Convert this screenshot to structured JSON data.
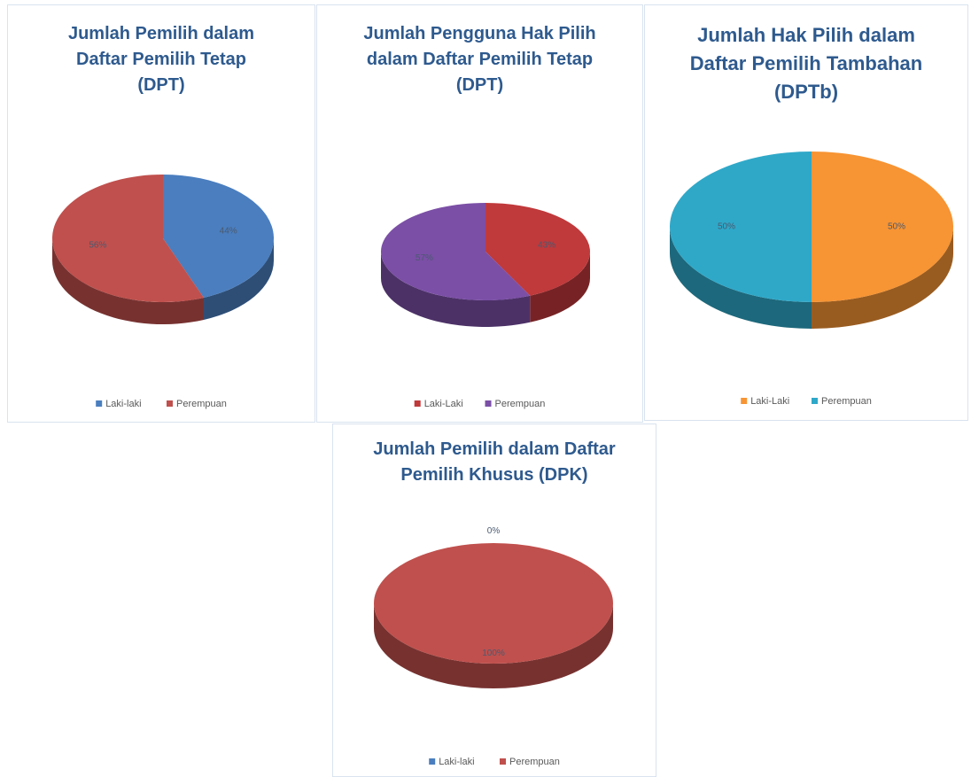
{
  "chart_data": [
    {
      "type": "pie",
      "title": "Jumlah Pemilih dalam Daftar Pemilih Tetap (DPT)",
      "categories": [
        "Laki-laki",
        "Perempuan"
      ],
      "values": [
        44,
        56
      ],
      "value_labels": [
        "44%",
        "56%"
      ],
      "colors": [
        "#4a7ebf",
        "#c0504d"
      ],
      "legend": "bottom"
    },
    {
      "type": "pie",
      "title": "Jumlah Pengguna Hak Pilih dalam Daftar Pemilih Tetap (DPT)",
      "categories": [
        "Laki-Laki",
        "Perempuan"
      ],
      "values": [
        43,
        57
      ],
      "value_labels": [
        "43%",
        "57%"
      ],
      "colors": [
        "#c0393b",
        "#7b4fa6"
      ],
      "legend": "bottom"
    },
    {
      "type": "pie",
      "title": "Jumlah Hak Pilih dalam Daftar Pemilih Tambahan (DPTb)",
      "categories": [
        "Laki-Laki",
        "Perempuan"
      ],
      "values": [
        50,
        50
      ],
      "value_labels": [
        "50%",
        "50%"
      ],
      "colors": [
        "#f79433",
        "#2fa8c8"
      ],
      "legend": "bottom"
    },
    {
      "type": "pie",
      "title": "Jumlah Pemilih dalam Daftar Pemilih Khusus (DPK)",
      "categories": [
        "Laki-laki",
        "Perempuan"
      ],
      "values": [
        0,
        100
      ],
      "value_labels": [
        "0%",
        "100%"
      ],
      "colors": [
        "#4a7ebf",
        "#c0504d"
      ],
      "legend": "bottom"
    }
  ]
}
